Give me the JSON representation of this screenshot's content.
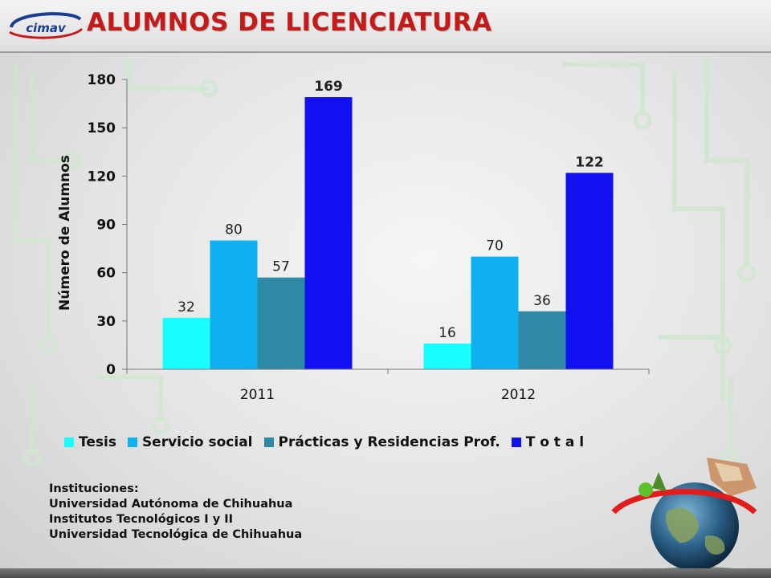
{
  "header": {
    "logo_text": "cimav",
    "title": "ALUMNOS DE LICENCIATURA"
  },
  "colors": {
    "title": "#c41a1a",
    "tesis": "#19ffff",
    "servicio": "#0eb0f0",
    "practicas": "#2e8aa4",
    "total": "#1010f0"
  },
  "chart_data": {
    "type": "bar",
    "categories": [
      "2011",
      "2012"
    ],
    "series": [
      {
        "name": "Tesis",
        "values": [
          32,
          16
        ],
        "color": "#19ffff"
      },
      {
        "name": "Servicio social",
        "values": [
          80,
          70
        ],
        "color": "#0eb0f0"
      },
      {
        "name": "Prácticas y Residencias Prof.",
        "values": [
          57,
          36
        ],
        "color": "#2e8aa4"
      },
      {
        "name": "T o t a l",
        "values": [
          169,
          122
        ],
        "color": "#1010f0"
      }
    ],
    "ylabel": "Número de Alumnos",
    "xlabel": "",
    "ylim": [
      0,
      180
    ],
    "yticks": [
      0,
      30,
      60,
      90,
      120,
      150,
      180
    ],
    "legend_position": "bottom",
    "grid": false
  },
  "institutions": {
    "heading": "Instituciones:",
    "items": [
      "Universidad Autónoma de Chihuahua",
      "Institutos Tecnológicos I y II",
      "Universidad Tecnológica de Chihuahua"
    ]
  },
  "icons": [
    "cimav-logo",
    "globe-illustration"
  ]
}
